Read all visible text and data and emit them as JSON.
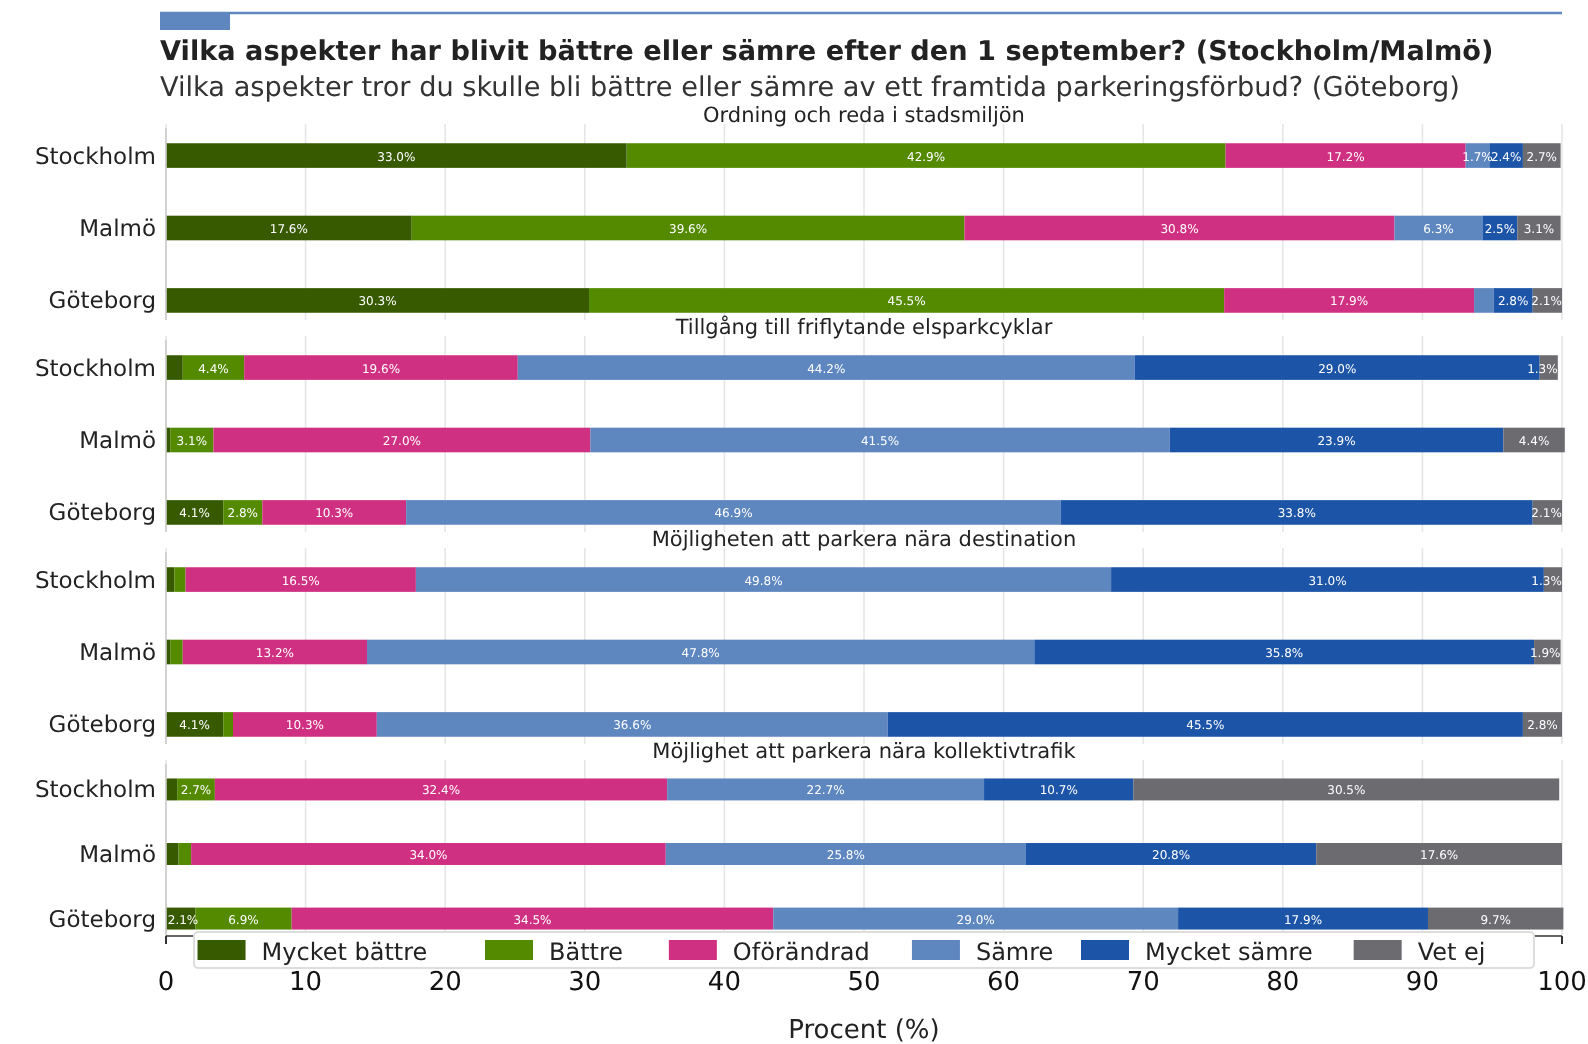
{
  "chart_data": [
    {
      "type": "bar",
      "orientation": "horizontal",
      "stacked": true,
      "grid": "x",
      "tick_labels": "y",
      "annotations": [
        "Vilka aspekter har blivit bättre eller sämre efter den 1 september? (Stockholm/Malmö)",
        "Vilka aspekter tror du skulle bli bättre eller sämre av ett framtida parkeringsförbud? (Göteborg)"
      ],
      "title": "Ordning och reda i stadsmiljön",
      "categories": [
        "Stockholm",
        "Malmö",
        "Göteborg"
      ],
      "xlim": [
        0,
        100
      ],
      "xticks": [
        0,
        10,
        20,
        30,
        40,
        50,
        60,
        70,
        80,
        90,
        100
      ],
      "series": [
        {
          "color": "#375a00",
          "values": [
            33.0,
            17.6,
            30.3
          ],
          "value_labels": [
            "33.0%",
            "17.6%",
            "30.3%"
          ]
        },
        {
          "color": "#538a00",
          "values": [
            42.9,
            39.6,
            45.5
          ],
          "value_labels": [
            "42.9%",
            "39.6%",
            "45.5%"
          ]
        },
        {
          "color": "#d03081",
          "values": [
            17.2,
            30.8,
            17.9
          ],
          "value_labels": [
            "17.2%",
            "30.8%",
            "17.9%"
          ]
        },
        {
          "color": "#5e87c0",
          "values": [
            1.7,
            6.3,
            1.4
          ],
          "value_labels": [
            "1.7%",
            "6.3%",
            null
          ]
        },
        {
          "color": "#1c54a8",
          "values": [
            2.4,
            2.5,
            2.8
          ],
          "value_labels": [
            "2.4%",
            "2.5%",
            "2.8%"
          ]
        },
        {
          "color": "#6b6b70",
          "values": [
            2.7,
            3.1,
            2.1
          ],
          "value_labels": [
            "2.7%",
            "3.1%",
            "2.1%"
          ]
        }
      ]
    },
    {
      "type": "bar",
      "orientation": "horizontal",
      "stacked": true,
      "grid": "x",
      "tick_labels": "y",
      "title": "Tillgång till friflytande elsparkcyklar",
      "categories": [
        "Stockholm",
        "Malmö",
        "Göteborg"
      ],
      "xlim": [
        0,
        100
      ],
      "xticks": [
        0,
        10,
        20,
        30,
        40,
        50,
        60,
        70,
        80,
        90,
        100
      ],
      "series": [
        {
          "color": "#375a00",
          "values": [
            1.2,
            0.3,
            4.1
          ],
          "value_labels": [
            null,
            null,
            "4.1%"
          ]
        },
        {
          "color": "#538a00",
          "values": [
            4.4,
            3.1,
            2.8
          ],
          "value_labels": [
            "4.4%",
            "3.1%",
            "2.8%"
          ]
        },
        {
          "color": "#d03081",
          "values": [
            19.6,
            27.0,
            10.3
          ],
          "value_labels": [
            "19.6%",
            "27.0%",
            "10.3%"
          ]
        },
        {
          "color": "#5e87c0",
          "values": [
            44.2,
            41.5,
            46.9
          ],
          "value_labels": [
            "44.2%",
            "41.5%",
            "46.9%"
          ]
        },
        {
          "color": "#1c54a8",
          "values": [
            29.0,
            23.9,
            33.8
          ],
          "value_labels": [
            "29.0%",
            "23.9%",
            "33.8%"
          ]
        },
        {
          "color": "#6b6b70",
          "values": [
            1.3,
            4.4,
            2.1
          ],
          "value_labels": [
            "1.3%",
            "4.4%",
            "2.1%"
          ]
        }
      ]
    },
    {
      "type": "bar",
      "orientation": "horizontal",
      "stacked": true,
      "grid": "x",
      "tick_labels": "y",
      "title": "Möjligheten att parkera nära destination",
      "categories": [
        "Stockholm",
        "Malmö",
        "Göteborg"
      ],
      "xlim": [
        0,
        100
      ],
      "xticks": [
        0,
        10,
        20,
        30,
        40,
        50,
        60,
        70,
        80,
        90,
        100
      ],
      "series": [
        {
          "color": "#375a00",
          "values": [
            0.6,
            0.3,
            4.1
          ],
          "value_labels": [
            null,
            null,
            "4.1%"
          ]
        },
        {
          "color": "#538a00",
          "values": [
            0.8,
            0.9,
            0.7
          ],
          "value_labels": [
            null,
            null,
            null
          ]
        },
        {
          "color": "#d03081",
          "values": [
            16.5,
            13.2,
            10.3
          ],
          "value_labels": [
            "16.5%",
            "13.2%",
            "10.3%"
          ]
        },
        {
          "color": "#5e87c0",
          "values": [
            49.8,
            47.8,
            36.6
          ],
          "value_labels": [
            "49.8%",
            "47.8%",
            "36.6%"
          ]
        },
        {
          "color": "#1c54a8",
          "values": [
            31.0,
            35.8,
            45.5
          ],
          "value_labels": [
            "31.0%",
            "35.8%",
            "45.5%"
          ]
        },
        {
          "color": "#6b6b70",
          "values": [
            1.3,
            1.9,
            2.8
          ],
          "value_labels": [
            "1.3%",
            "1.9%",
            "2.8%"
          ]
        }
      ]
    },
    {
      "type": "bar",
      "orientation": "horizontal",
      "stacked": true,
      "grid": "x",
      "legend": "bottom",
      "title": "Möjlighet att parkera nära kollektivtrafik",
      "xlabel": "Procent (%)",
      "categories": [
        "Stockholm",
        "Malmö",
        "Göteborg"
      ],
      "xlim": [
        0,
        100
      ],
      "xticks": [
        0,
        10,
        20,
        30,
        40,
        50,
        60,
        70,
        80,
        90,
        100
      ],
      "series": [
        {
          "name": "Mycket bättre",
          "color": "#375a00",
          "values": [
            0.8,
            0.9,
            2.1
          ],
          "value_labels": [
            null,
            null,
            "2.1%"
          ]
        },
        {
          "name": "Bättre",
          "color": "#538a00",
          "values": [
            2.7,
            0.9,
            6.9
          ],
          "value_labels": [
            "2.7%",
            null,
            "6.9%"
          ]
        },
        {
          "name": "Oförändrad",
          "color": "#d03081",
          "values": [
            32.4,
            34.0,
            34.5
          ],
          "value_labels": [
            "32.4%",
            "34.0%",
            "34.5%"
          ]
        },
        {
          "name": "Sämre",
          "color": "#5e87c0",
          "values": [
            22.7,
            25.8,
            29.0
          ],
          "value_labels": [
            "22.7%",
            "25.8%",
            "29.0%"
          ]
        },
        {
          "name": "Mycket sämre",
          "color": "#1c54a8",
          "values": [
            10.7,
            20.8,
            17.9
          ],
          "value_labels": [
            "10.7%",
            "20.8%",
            "17.9%"
          ]
        },
        {
          "name": "Vet ej",
          "color": "#6b6b70",
          "values": [
            30.5,
            17.6,
            9.7
          ],
          "value_labels": [
            "30.5%",
            "17.6%",
            "9.7%"
          ]
        }
      ]
    }
  ]
}
